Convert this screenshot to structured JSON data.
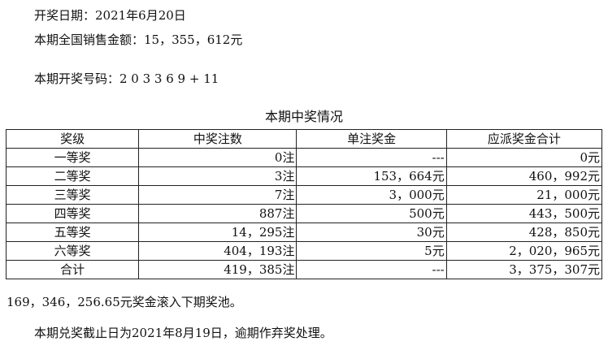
{
  "info": {
    "draw_date": "开奖日期：2021年6月20日",
    "sales": "本期全国销售金额：15，355，612元",
    "numbers": "本期开奖号码：2 0 3 3 6 9 + 11"
  },
  "table_title": "本期中奖情况",
  "headers": [
    "奖级",
    "中奖注数",
    "单注奖金",
    "应派奖金合计"
  ],
  "rows": [
    [
      "一等奖",
      "0注",
      "---",
      "0元"
    ],
    [
      "二等奖",
      "3注",
      "153，664元",
      "460，992元"
    ],
    [
      "三等奖",
      "7注",
      "3，000元",
      "21，000元"
    ],
    [
      "四等奖",
      "887注",
      "500元",
      "443，500元"
    ],
    [
      "五等奖",
      "14，295注",
      "30元",
      "428，850元"
    ],
    [
      "六等奖",
      "404，193注",
      "5元",
      "2，020，965元"
    ],
    [
      "合计",
      "419，385注",
      "---",
      "3，375，307元"
    ]
  ],
  "footer": {
    "pool": "169，346，256.65元奖金滚入下期奖池。",
    "deadline": "本期兑奖截止日为2021年8月19日，逾期作弃奖处理。"
  }
}
